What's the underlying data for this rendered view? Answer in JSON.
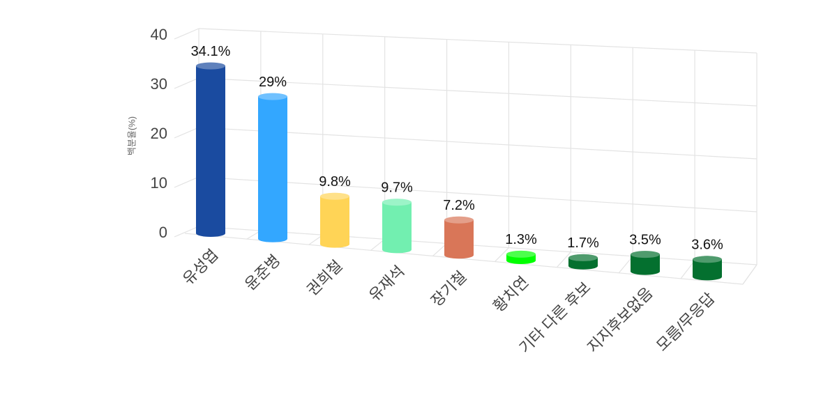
{
  "chart_data": {
    "type": "bar3d",
    "y_axis_label": "백분율(%)",
    "categories": [
      "유성엽",
      "윤준병",
      "권희철",
      "유재석",
      "장기철",
      "황치연",
      "기타 다른 후보",
      "지지후보없음",
      "모름/무응답"
    ],
    "values": [
      34.1,
      29,
      9.8,
      9.7,
      7.2,
      1.3,
      1.7,
      3.5,
      3.6
    ],
    "value_labels": [
      "34.1%",
      "29%",
      "9.8%",
      "9.7%",
      "7.2%",
      "1.3%",
      "1.7%",
      "3.5%",
      "3.6%"
    ],
    "colors": [
      "#1a4ba0",
      "#33a7ff",
      "#ffd456",
      "#72efb0",
      "#d97658",
      "#00ff00",
      "#04702f",
      "#04702f",
      "#04702f"
    ],
    "ylim": [
      0,
      40
    ],
    "yticks": [
      0,
      10,
      20,
      30,
      40
    ],
    "grid": true
  }
}
